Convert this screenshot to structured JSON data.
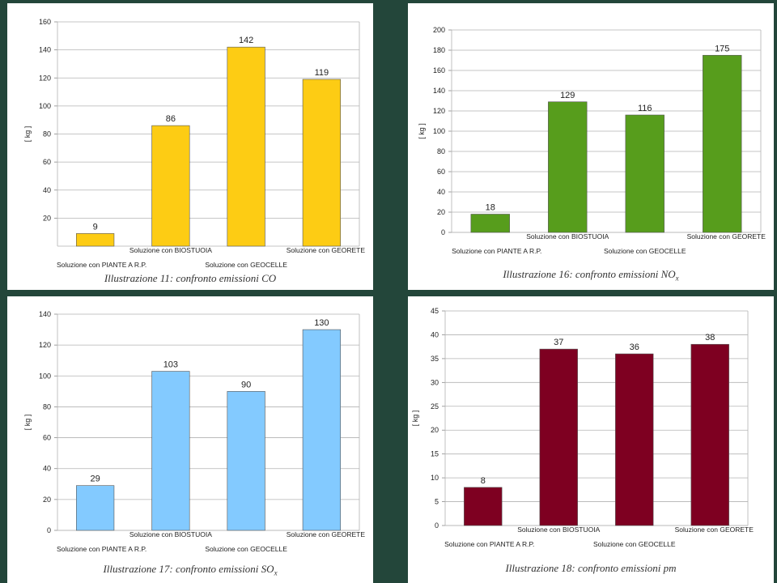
{
  "chart_data": [
    {
      "type": "bar",
      "categories": [
        "Soluzione con PIANTE A R.P.",
        "Soluzione con BIOSTUOIA",
        "Soluzione con GEOCELLE",
        "Soluzione con GEORETE"
      ],
      "values": [
        9,
        86,
        142,
        119
      ],
      "ylabel": "[ kg ]",
      "ylim": [
        0,
        160
      ],
      "yticks": [
        20,
        40,
        60,
        80,
        100,
        120,
        140,
        160
      ],
      "color": "#fdcc14",
      "grid": true,
      "caption": "Illustrazione 11: confronto emissioni CO"
    },
    {
      "type": "bar",
      "categories": [
        "Soluzione con PIANTE A R.P.",
        "Soluzione con BIOSTUOIA",
        "Soluzione con GEOCELLE",
        "Soluzione con GEORETE"
      ],
      "values": [
        18,
        129,
        116,
        175
      ],
      "ylabel": "[ kg ]",
      "ylim": [
        0,
        200
      ],
      "yticks": [
        0,
        20,
        40,
        60,
        80,
        100,
        120,
        140,
        160,
        180,
        200
      ],
      "color": "#579d1c",
      "grid": true,
      "caption": "Illustrazione 16: confronto emissioni NO",
      "caption_sub": "x"
    },
    {
      "type": "bar",
      "categories": [
        "Soluzione con PIANTE A R.P.",
        "Soluzione con BIOSTUOIA",
        "Soluzione con GEOCELLE",
        "Soluzione con GEORETE"
      ],
      "values": [
        29,
        103,
        90,
        130
      ],
      "ylabel": "[ kg ]",
      "ylim": [
        0,
        140
      ],
      "yticks": [
        0,
        20,
        40,
        60,
        80,
        100,
        120,
        140
      ],
      "color": "#83caff",
      "grid": true,
      "caption": "Illustrazione 17: confronto emissioni SO",
      "caption_sub": "x"
    },
    {
      "type": "bar",
      "categories": [
        "Soluzione con PIANTE A R.P.",
        "Soluzione con BIOSTUOIA",
        "Soluzione con GEOCELLE",
        "Soluzione con GEORETE"
      ],
      "values": [
        8,
        37,
        36,
        38
      ],
      "ylabel": "[ kg ]",
      "ylim": [
        0,
        45
      ],
      "yticks": [
        0,
        5,
        10,
        15,
        20,
        25,
        30,
        35,
        40,
        45
      ],
      "color": "#7e0021",
      "grid": true,
      "caption": "Illustrazione 18: confronto emissioni pm"
    }
  ]
}
